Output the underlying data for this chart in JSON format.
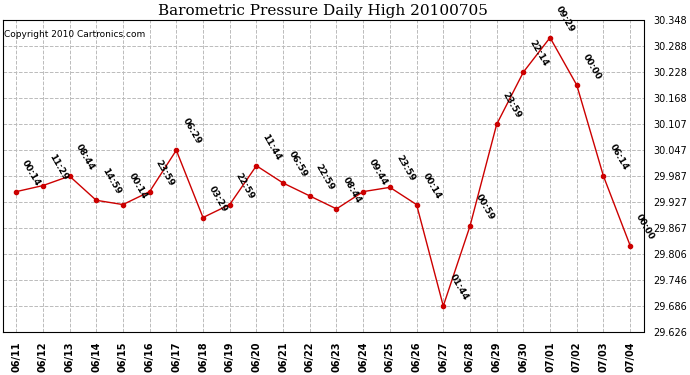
{
  "title": "Barometric Pressure Daily High 20100705",
  "copyright": "Copyright 2010 Cartronics.com",
  "x_labels": [
    "06/11",
    "06/12",
    "06/13",
    "06/14",
    "06/15",
    "06/16",
    "06/17",
    "06/18",
    "06/19",
    "06/20",
    "06/21",
    "06/22",
    "06/23",
    "06/24",
    "06/25",
    "06/26",
    "06/27",
    "06/28",
    "06/29",
    "06/30",
    "07/01",
    "07/02",
    "07/03",
    "07/04"
  ],
  "y_values": [
    29.951,
    29.965,
    29.987,
    29.931,
    29.921,
    29.951,
    30.047,
    29.891,
    29.921,
    30.011,
    29.971,
    29.941,
    29.911,
    29.951,
    29.961,
    29.921,
    29.686,
    29.871,
    30.107,
    30.228,
    30.308,
    30.198,
    29.987,
    29.826
  ],
  "point_labels": [
    "00:14",
    "11:29",
    "08:44",
    "14:59",
    "00:14",
    "23:59",
    "06:29",
    "03:29",
    "22:59",
    "11:44",
    "06:59",
    "22:59",
    "08:44",
    "09:44",
    "23:59",
    "00:14",
    "01:44",
    "00:59",
    "23:59",
    "22:14",
    "09:29",
    "00:00",
    "06:14",
    "00:00"
  ],
  "line_color": "#cc0000",
  "marker_color": "#cc0000",
  "background_color": "#ffffff",
  "grid_color": "#bbbbbb",
  "ylim_min": 29.626,
  "ylim_max": 30.348,
  "yticks": [
    29.626,
    29.686,
    29.746,
    29.806,
    29.867,
    29.927,
    29.987,
    30.047,
    30.107,
    30.168,
    30.228,
    30.288,
    30.348
  ],
  "title_fontsize": 11,
  "copyright_fontsize": 6.5,
  "label_fontsize": 6.5,
  "tick_fontsize": 7
}
